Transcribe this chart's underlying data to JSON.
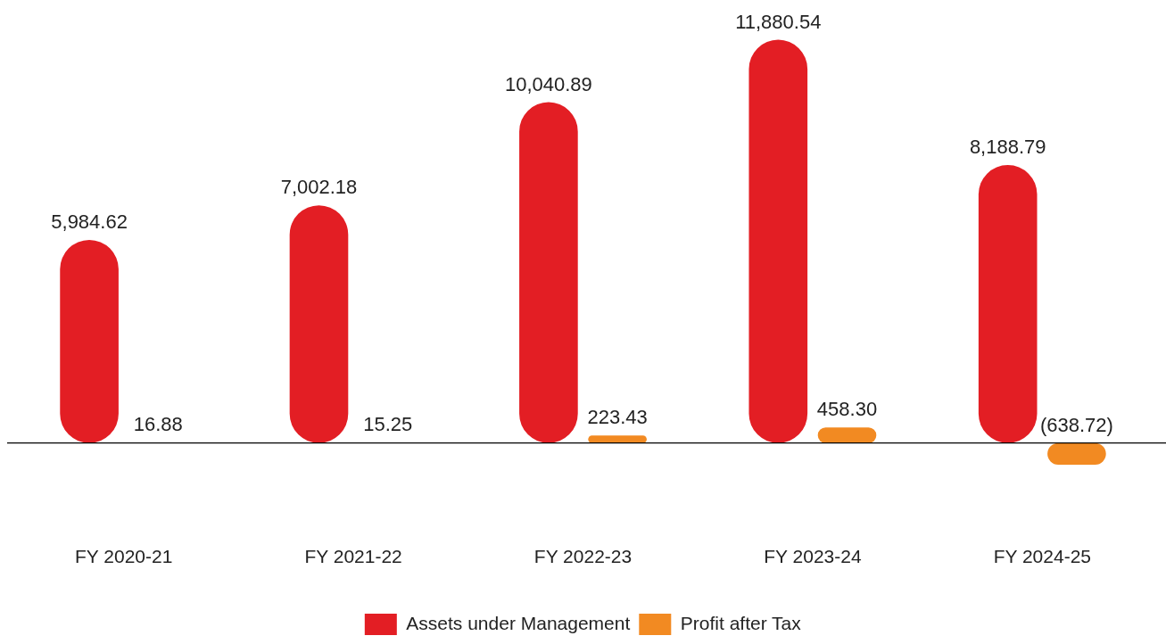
{
  "chart_data": {
    "type": "bar",
    "categories": [
      "FY 2020-21",
      "FY 2021-22",
      "FY 2022-23",
      "FY 2023-24",
      "FY 2024-25"
    ],
    "series": [
      {
        "name": "Assets under Management",
        "color": "#e31e24",
        "values": [
          5984.62,
          7002.18,
          10040.89,
          11880.54,
          8188.79
        ],
        "value_labels": [
          "5,984.62",
          "7,002.18",
          "10,040.89",
          "11,880.54",
          "8,188.79"
        ]
      },
      {
        "name": "Profit after Tax",
        "color": "#f28a22",
        "values": [
          16.88,
          15.25,
          223.43,
          458.3,
          -638.72
        ],
        "value_labels": [
          "16.88",
          "15.25",
          "223.43",
          "458.30",
          "(638.72)"
        ]
      }
    ],
    "legend": "bottom",
    "grid": false
  }
}
